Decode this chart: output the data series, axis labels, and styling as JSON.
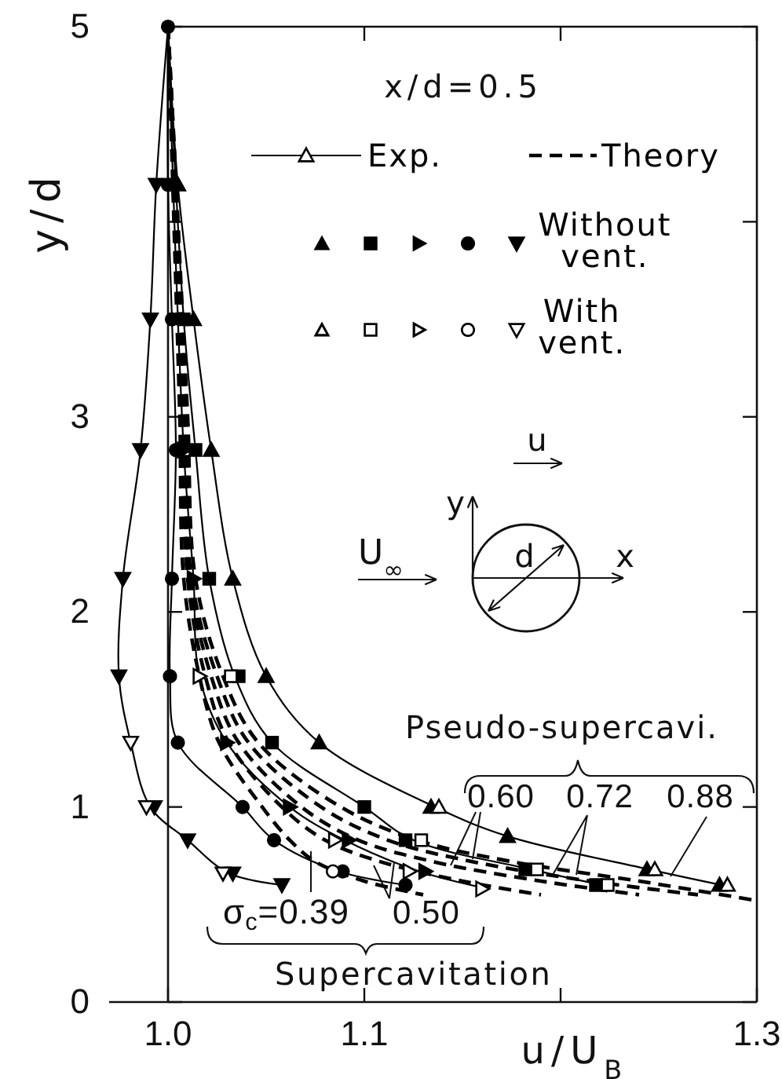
{
  "chart_data": {
    "type": "scatter",
    "xlabel": "u/U$_{B}$",
    "ylabel": "y/d",
    "xlim": [
      0.97,
      1.3
    ],
    "xticks": [
      {
        "value": 1,
        "label": "1.0"
      },
      1.1,
      {
        "value": 1.2,
        "label": null
      },
      1.3
    ],
    "ylim": [
      0,
      5
    ],
    "yticks": [
      0,
      1,
      2,
      3,
      {
        "value": 4,
        "label": null
      },
      5
    ],
    "legend": "top right",
    "annotations": [
      "x/d=0.5",
      "Pseudo-supercavi.",
      "0.60",
      "0.72",
      "0.88",
      "σ$_{c}$=0.39",
      "0.50",
      "Supercavitation",
      "u",
      "U$_{∞}$",
      "y",
      "x",
      "d"
    ],
    "series": [
      {
        "type": "line",
        "name": "Exp.",
        "color": "#000000",
        "line_style": "solid",
        "x": [
          1.0,
          1.005,
          1.013,
          1.022,
          1.033,
          1.05,
          1.077,
          1.136,
          1.173,
          1.245,
          1.282
        ],
        "values": [
          5,
          4.19,
          3.5,
          2.83,
          2.17,
          1.67,
          1.33,
          1.0,
          0.85,
          0.68,
          0.6
        ]
      },
      {
        "type": "line",
        "color": "#000000",
        "line_style": "solid",
        "x": [
          1.0,
          1.008,
          1.014,
          1.021,
          1.034,
          1.053,
          1.1,
          1.125,
          1.185,
          1.221
        ],
        "values": [
          5,
          3.5,
          2.83,
          2.17,
          1.67,
          1.33,
          1.0,
          0.83,
          0.68,
          0.6
        ]
      },
      {
        "type": "line",
        "color": "#000000",
        "line_style": "solid",
        "x": [
          1.0,
          1.008,
          1.013,
          1.016,
          1.03,
          1.062,
          1.09,
          1.128,
          1.163
        ],
        "values": [
          5,
          2.83,
          2.17,
          1.67,
          1.33,
          1.0,
          0.83,
          0.67,
          0.58
        ]
      },
      {
        "type": "line",
        "color": "#000000",
        "line_style": "solid",
        "x": [
          1.0,
          1.0,
          1.002,
          1.004,
          1.002,
          1.001,
          1.005,
          1.038,
          1.054,
          1.087,
          1.121
        ],
        "values": [
          5,
          4.19,
          3.5,
          2.83,
          2.17,
          1.67,
          1.33,
          1.0,
          0.83,
          0.67,
          0.6
        ]
      },
      {
        "type": "line",
        "color": "#000000",
        "line_style": "solid",
        "x": [
          1.0,
          0.994,
          0.991,
          0.986,
          0.977,
          0.975,
          0.981,
          0.991,
          1.01,
          1.031,
          1.058
        ],
        "values": [
          5,
          4.19,
          3.5,
          2.83,
          2.17,
          1.67,
          1.33,
          1.0,
          0.83,
          0.66,
          0.6
        ]
      },
      {
        "type": "line",
        "name": "Theory",
        "color": "#000000",
        "line_style": "dashed",
        "x": [
          1.0,
          1.003,
          1.006,
          1.008,
          1.016,
          1.026,
          1.048,
          1.062,
          1.075,
          1.1,
          1.13
        ],
        "values": [
          5,
          4,
          3,
          2.17,
          1.67,
          1.33,
          1.0,
          0.83,
          0.72,
          0.62,
          0.55
        ]
      },
      {
        "type": "line",
        "color": "#000000",
        "line_style": "dashed",
        "x": [
          1.0,
          1.004,
          1.007,
          1.01,
          1.019,
          1.031,
          1.058,
          1.08,
          1.108,
          1.15,
          1.19
        ],
        "values": [
          5,
          4,
          3,
          2.17,
          1.67,
          1.33,
          1.0,
          0.83,
          0.72,
          0.62,
          0.55
        ]
      },
      {
        "type": "line",
        "color": "#000000",
        "line_style": "dashed",
        "x": [
          1.0,
          1.004,
          1.008,
          1.011,
          1.022,
          1.036,
          1.068,
          1.097,
          1.135,
          1.19,
          1.24
        ],
        "values": [
          5,
          4,
          3,
          2.17,
          1.67,
          1.33,
          1.0,
          0.83,
          0.72,
          0.62,
          0.55
        ]
      },
      {
        "type": "line",
        "color": "#000000",
        "line_style": "dashed",
        "x": [
          1.0,
          1.005,
          1.009,
          1.012,
          1.025,
          1.041,
          1.078,
          1.112,
          1.155,
          1.215,
          1.27
        ],
        "values": [
          5,
          4,
          3,
          2.17,
          1.67,
          1.33,
          1.0,
          0.83,
          0.72,
          0.62,
          0.55
        ]
      },
      {
        "type": "line",
        "color": "#000000",
        "line_style": "dashed",
        "x": [
          1.0,
          1.005,
          1.01,
          1.014,
          1.028,
          1.046,
          1.088,
          1.127,
          1.175,
          1.24,
          1.3
        ],
        "values": [
          5,
          4,
          3,
          2.17,
          1.67,
          1.33,
          1.0,
          0.83,
          0.72,
          0.62,
          0.52
        ]
      },
      {
        "color": "#000000",
        "marker": "triangle",
        "x": [
          1.005,
          1.013,
          1.022,
          1.033,
          1.05,
          1.077,
          1.134,
          1.173,
          1.244,
          1.281
        ],
        "values": [
          4.19,
          3.5,
          2.83,
          2.17,
          1.67,
          1.33,
          1.0,
          0.85,
          0.68,
          0.6
        ]
      },
      {
        "color": "#000000",
        "marker": "square",
        "x": [
          1.008,
          1.014,
          1.021,
          1.036,
          1.053,
          1.1,
          1.121,
          1.182,
          1.218
        ],
        "values": [
          3.5,
          2.83,
          2.17,
          1.67,
          1.33,
          1.0,
          0.83,
          0.68,
          0.6
        ]
      },
      {
        "color": "#000000",
        "marker": "triangle-right",
        "x": [
          1.008,
          1.013,
          1.03,
          1.062,
          1.092,
          1.131
        ],
        "values": [
          2.83,
          2.17,
          1.33,
          1.0,
          0.83,
          0.67
        ]
      },
      {
        "color": "#000000",
        "marker": "circle",
        "x": [
          1.0,
          1.0,
          1.002,
          1.004,
          1.002,
          1.001,
          1.005,
          1.038,
          1.054,
          1.089,
          1.121
        ],
        "values": [
          5,
          4.19,
          3.5,
          2.83,
          2.17,
          1.67,
          1.33,
          1.0,
          0.83,
          0.67,
          0.6
        ]
      },
      {
        "name": "Without vent.",
        "color": "#000000",
        "marker": "triangle-down",
        "x": [
          0.994,
          0.991,
          0.986,
          0.977,
          0.975,
          0.993,
          1.01,
          1.033,
          1.058
        ],
        "values": [
          4.19,
          3.5,
          2.83,
          2.17,
          1.67,
          1.0,
          0.83,
          0.66,
          0.6
        ]
      },
      {
        "color": "#000000",
        "marker": "triangle-open",
        "x": [
          1.138,
          1.248,
          1.285
        ],
        "values": [
          1.0,
          0.68,
          0.6
        ]
      },
      {
        "color": "#000000",
        "marker": "square-open",
        "x": [
          1.032,
          1.129,
          1.188,
          1.224
        ],
        "values": [
          1.67,
          0.83,
          0.68,
          0.6
        ]
      },
      {
        "color": "#000000",
        "marker": "triangle-right-open",
        "x": [
          1.016,
          1.085,
          1.123,
          1.16
        ],
        "values": [
          1.67,
          0.83,
          0.67,
          0.58
        ]
      },
      {
        "color": "#000000",
        "marker": "circle-open",
        "x": [
          1.084
        ],
        "values": [
          0.67
        ]
      },
      {
        "name": "With vent.",
        "color": "#000000",
        "marker": "triangle-down-open",
        "x": [
          0.981,
          0.989,
          1.028
        ],
        "values": [
          1.33,
          1.0,
          0.66
        ]
      }
    ]
  }
}
